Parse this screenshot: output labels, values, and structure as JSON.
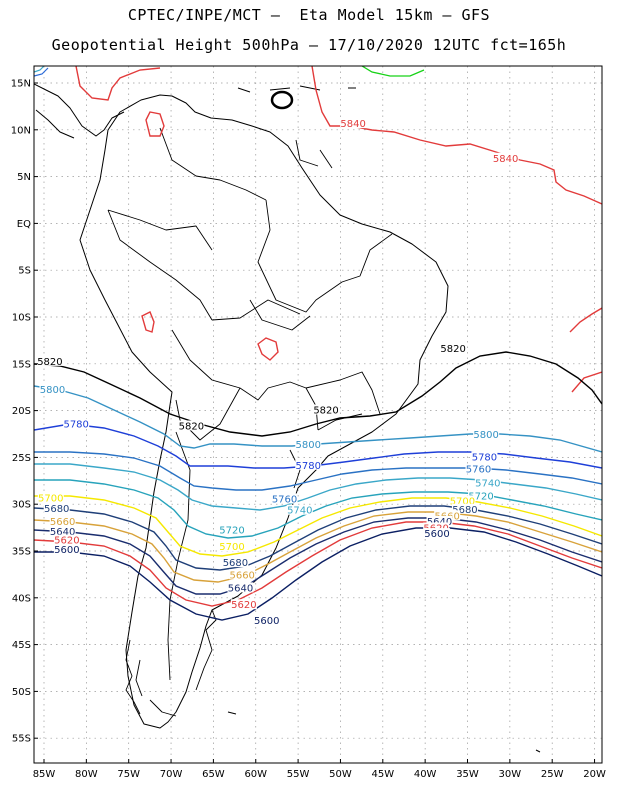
{
  "title_line1": "CPTEC/INPE/MCT –  Eta Model 15km – GFS",
  "title_line2": "Geopotential Height 500hPa – 17/10/2020 12UTC fct=165h",
  "lat_labels": [
    "15N",
    "10N",
    "5N",
    "EQ",
    "5S",
    "10S",
    "15S",
    "20S",
    "25S",
    "30S",
    "35S",
    "40S",
    "45S",
    "50S",
    "55S"
  ],
  "lon_labels": [
    "85W",
    "80W",
    "75W",
    "70W",
    "65W",
    "60W",
    "55W",
    "50W",
    "45W",
    "40W",
    "35W",
    "30W",
    "25W",
    "20W"
  ],
  "contours": [
    {
      "level": "5840",
      "color": "#e23b3b",
      "labels": [
        {
          "text": "5840",
          "lon": -48.5,
          "lat": 10.5
        },
        {
          "text": "5840",
          "lon": -30.5,
          "lat": 6.8
        }
      ]
    },
    {
      "level": "5820",
      "color": "#000000",
      "labels": [
        {
          "text": "5820",
          "lon": -84.3,
          "lat": -14.9
        },
        {
          "text": "5820",
          "lon": -67.6,
          "lat": -21.8
        },
        {
          "text": "5820",
          "lon": -51.7,
          "lat": -20.1
        },
        {
          "text": "5820",
          "lon": -36.7,
          "lat": -13.5
        }
      ]
    },
    {
      "level": "5800",
      "color": "#3592c4",
      "labels": [
        {
          "text": "5800",
          "lon": -84.0,
          "lat": -17.9
        },
        {
          "text": "5800",
          "lon": -53.8,
          "lat": -23.8
        },
        {
          "text": "5800",
          "lon": -32.8,
          "lat": -22.7
        }
      ]
    },
    {
      "level": "5780",
      "color": "#1e3fd8",
      "labels": [
        {
          "text": "5780",
          "lon": -81.2,
          "lat": -21.6
        },
        {
          "text": "5780",
          "lon": -53.8,
          "lat": -26.0
        },
        {
          "text": "5780",
          "lon": -33.0,
          "lat": -25.1
        }
      ]
    },
    {
      "level": "5760",
      "color": "#2a72c4",
      "labels": [
        {
          "text": "5760",
          "lon": -56.6,
          "lat": -29.6
        },
        {
          "text": "5760",
          "lon": -33.7,
          "lat": -26.4
        }
      ]
    },
    {
      "level": "5740",
      "color": "#3aa7c8",
      "labels": [
        {
          "text": "5740",
          "lon": -54.8,
          "lat": -30.8
        },
        {
          "text": "5740",
          "lon": -32.6,
          "lat": -27.9
        }
      ]
    },
    {
      "level": "5720",
      "color": "#27a3bb",
      "labels": [
        {
          "text": "5720",
          "lon": -62.8,
          "lat": -32.9
        },
        {
          "text": "5720",
          "lon": -33.4,
          "lat": -29.3
        }
      ]
    },
    {
      "level": "5700",
      "color": "#f5e800",
      "labels": [
        {
          "text": "5700",
          "lon": -84.2,
          "lat": -29.5
        },
        {
          "text": "5700",
          "lon": -62.8,
          "lat": -34.7
        },
        {
          "text": "5700",
          "lon": -35.6,
          "lat": -29.8
        }
      ]
    },
    {
      "level": "5680",
      "color": "#1f3f78",
      "labels": [
        {
          "text": "5680",
          "lon": -83.5,
          "lat": -30.6
        },
        {
          "text": "5680",
          "lon": -62.4,
          "lat": -36.4
        },
        {
          "text": "5680",
          "lon": -35.3,
          "lat": -30.7
        }
      ]
    },
    {
      "level": "5660",
      "color": "#d8a23a",
      "labels": [
        {
          "text": "5660",
          "lon": -82.8,
          "lat": -32.0
        },
        {
          "text": "5660",
          "lon": -61.6,
          "lat": -37.7
        },
        {
          "text": "5660",
          "lon": -37.4,
          "lat": -31.4
        }
      ]
    },
    {
      "level": "5640",
      "color": "#1a2d6e",
      "labels": [
        {
          "text": "5640",
          "lon": -82.8,
          "lat": -33.1
        },
        {
          "text": "5640",
          "lon": -61.8,
          "lat": -39.1
        },
        {
          "text": "5640",
          "lon": -38.3,
          "lat": -32.0
        }
      ]
    },
    {
      "level": "5620",
      "color": "#e23b3b",
      "labels": [
        {
          "text": "5620",
          "lon": -82.3,
          "lat": -34.0
        },
        {
          "text": "5620",
          "lon": -61.4,
          "lat": -40.9
        },
        {
          "text": "5620",
          "lon": -38.7,
          "lat": -32.7
        }
      ]
    },
    {
      "level": "5600",
      "color": "#0b1f63",
      "labels": [
        {
          "text": "5600",
          "lon": -82.3,
          "lat": -35.0
        },
        {
          "text": "5600",
          "lon": -58.7,
          "lat": -42.6
        },
        {
          "text": "5600",
          "lon": -38.6,
          "lat": -33.3
        }
      ]
    }
  ],
  "colors": {
    "grid": "#9a9a9a",
    "coast": "#000000",
    "frame": "#000000",
    "green": "#17d217"
  }
}
